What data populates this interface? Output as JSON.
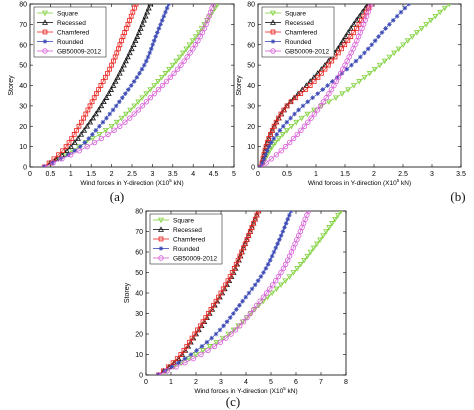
{
  "series_styles": [
    {
      "name": "Square",
      "color": "#7fd13b",
      "marker": "triangle-down"
    },
    {
      "name": "Recessed",
      "color": "#111111",
      "marker": "triangle-up"
    },
    {
      "name": "Chamfered",
      "color": "#e8231f",
      "marker": "square"
    },
    {
      "name": "Rounded",
      "color": "#3a49b5",
      "marker": "star"
    },
    {
      "name": "GB50009-2012",
      "color": "#d65bd6",
      "marker": "circle"
    }
  ],
  "chart_data": [
    {
      "type": "line",
      "caption": "(a)",
      "xlabel": "Wind forces in Y-direction (X10",
      "xlabel_sup": "5",
      "xlabel_unit": " kN)",
      "ylabel": "Storey",
      "xlim": [
        0,
        5
      ],
      "ylim": [
        0,
        80
      ],
      "xticks": [
        0,
        0.5,
        1,
        1.5,
        2,
        2.5,
        3,
        3.5,
        4,
        4.5,
        5
      ],
      "yticks": [
        0,
        10,
        20,
        30,
        40,
        50,
        60,
        70,
        80
      ],
      "legend": "top-left",
      "series": [
        {
          "name": "Square",
          "x": [
            0.35,
            1.2,
            2.0,
            2.8,
            3.5,
            4.1,
            4.6
          ],
          "y": [
            0,
            10,
            20,
            35,
            50,
            65,
            80
          ]
        },
        {
          "name": "Recessed",
          "x": [
            0.35,
            0.9,
            1.4,
            1.9,
            2.3,
            2.65,
            2.95
          ],
          "y": [
            0,
            8,
            20,
            35,
            50,
            65,
            80
          ]
        },
        {
          "name": "Chamfered",
          "x": [
            0.35,
            0.8,
            1.2,
            1.6,
            2.0,
            2.3,
            2.6
          ],
          "y": [
            0,
            8,
            20,
            35,
            50,
            65,
            80
          ]
        },
        {
          "name": "Rounded",
          "x": [
            0.35,
            1.1,
            1.7,
            2.3,
            2.8,
            3.1,
            3.4
          ],
          "y": [
            0,
            8,
            20,
            35,
            50,
            65,
            80
          ]
        },
        {
          "name": "GB50009-2012",
          "x": [
            0.35,
            1.4,
            2.2,
            3.0,
            3.7,
            4.2,
            4.5
          ],
          "y": [
            0,
            10,
            20,
            35,
            50,
            65,
            80
          ]
        }
      ]
    },
    {
      "type": "line",
      "caption": "(b)",
      "xlabel": "Wind forces in Y-direction (X10",
      "xlabel_sup": "5",
      "xlabel_unit": " kN)",
      "ylabel": "Storey",
      "xlim": [
        0,
        3.5
      ],
      "ylim": [
        0,
        80
      ],
      "xticks": [
        0,
        0.5,
        1,
        1.5,
        2,
        2.5,
        3,
        3.5
      ],
      "yticks": [
        0,
        10,
        20,
        30,
        40,
        50,
        60,
        70,
        80
      ],
      "legend": "top-left",
      "series": [
        {
          "name": "Square",
          "x": [
            0.05,
            0.3,
            0.8,
            1.4,
            2.1,
            2.7,
            3.3
          ],
          "y": [
            0,
            12,
            25,
            35,
            50,
            65,
            80
          ]
        },
        {
          "name": "Recessed",
          "x": [
            0.05,
            0.2,
            0.5,
            0.9,
            1.3,
            1.6,
            1.9
          ],
          "y": [
            0,
            15,
            30,
            42,
            55,
            68,
            80
          ]
        },
        {
          "name": "Chamfered",
          "x": [
            0.05,
            0.2,
            0.5,
            0.9,
            1.3,
            1.65,
            1.95
          ],
          "y": [
            0,
            15,
            30,
            40,
            53,
            66,
            80
          ]
        },
        {
          "name": "Rounded",
          "x": [
            0.05,
            0.25,
            0.7,
            1.2,
            1.8,
            2.2,
            2.6
          ],
          "y": [
            0,
            13,
            28,
            40,
            55,
            68,
            80
          ]
        },
        {
          "name": "GB50009-2012",
          "x": [
            0.05,
            0.4,
            0.8,
            1.2,
            1.5,
            1.75,
            1.95
          ],
          "y": [
            0,
            8,
            20,
            35,
            50,
            65,
            80
          ]
        }
      ]
    },
    {
      "type": "line",
      "caption": "(c)",
      "xlabel": "Wind forces in Y-direction (X10",
      "xlabel_sup": "5",
      "xlabel_unit": " kN)",
      "ylabel": "Storey",
      "xlim": [
        0,
        8
      ],
      "ylim": [
        0,
        80
      ],
      "xticks": [
        0,
        1,
        2,
        3,
        4,
        5,
        6,
        7,
        8
      ],
      "yticks": [
        0,
        10,
        20,
        30,
        40,
        50,
        60,
        70,
        80
      ],
      "legend": "top-left",
      "series": [
        {
          "name": "Square",
          "x": [
            0.5,
            2.0,
            3.3,
            4.6,
            5.9,
            6.9,
            7.8
          ],
          "y": [
            0,
            10,
            20,
            35,
            50,
            65,
            80
          ]
        },
        {
          "name": "Recessed",
          "x": [
            0.5,
            1.3,
            2.0,
            2.8,
            3.5,
            4.0,
            4.5
          ],
          "y": [
            0,
            8,
            20,
            35,
            50,
            65,
            80
          ]
        },
        {
          "name": "Chamfered",
          "x": [
            0.5,
            1.25,
            1.95,
            2.75,
            3.45,
            4.0,
            4.5
          ],
          "y": [
            0,
            8,
            20,
            35,
            50,
            65,
            80
          ]
        },
        {
          "name": "Rounded",
          "x": [
            0.5,
            1.8,
            2.8,
            3.8,
            4.7,
            5.3,
            5.8
          ],
          "y": [
            0,
            10,
            20,
            35,
            50,
            65,
            80
          ]
        },
        {
          "name": "GB50009-2012",
          "x": [
            0.5,
            2.2,
            3.4,
            4.5,
            5.4,
            6.0,
            6.5
          ],
          "y": [
            0,
            10,
            20,
            35,
            50,
            65,
            80
          ]
        }
      ]
    }
  ]
}
